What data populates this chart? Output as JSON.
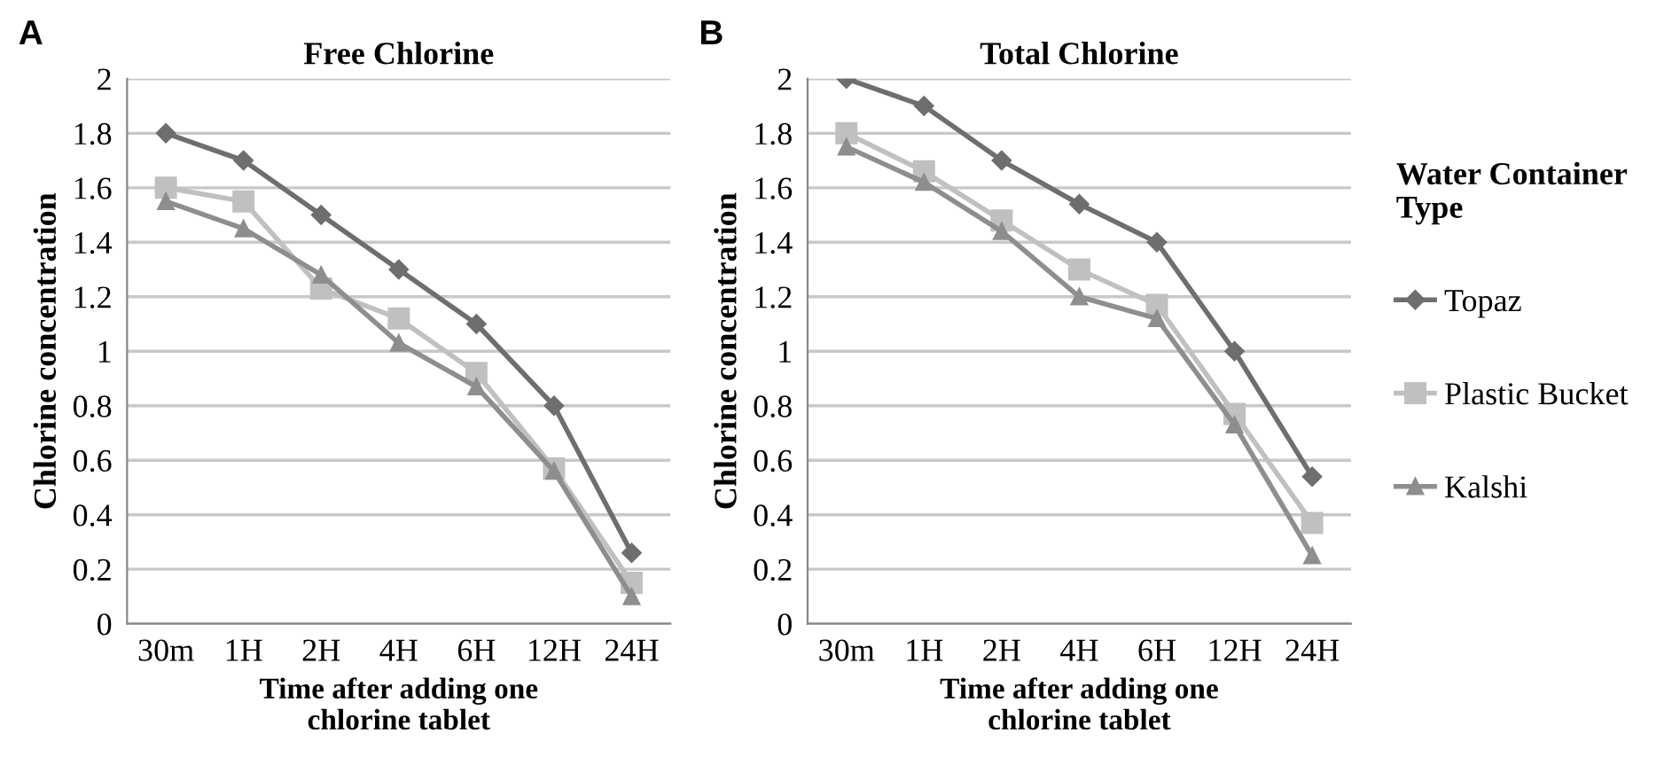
{
  "chart_data": [
    {
      "type": "line",
      "title": "Free Chlorine",
      "xlabel": "Time after adding one chlorine tablet",
      "ylabel": "Chlorine concentration",
      "annotations": [
        "A"
      ],
      "categories": [
        "30m",
        "1H",
        "2H",
        "4H",
        "6H",
        "12H",
        "24H"
      ],
      "series": [
        {
          "color": "#6e6e6e",
          "marker": "diamond",
          "values": [
            1.8,
            1.7,
            1.5,
            1.3,
            1.1,
            0.8,
            0.26
          ]
        },
        {
          "color": "#c0c0c0",
          "marker": "square",
          "values": [
            1.6,
            1.55,
            1.23,
            1.12,
            0.92,
            0.57,
            0.15
          ]
        },
        {
          "color": "#8e8e8e",
          "marker": "triangle",
          "values": [
            1.55,
            1.45,
            1.28,
            1.03,
            0.87,
            0.56,
            0.1
          ]
        }
      ],
      "ylim": [
        0,
        2
      ],
      "yticks": [
        0,
        0.2,
        0.4,
        0.6,
        0.8,
        1,
        1.2,
        1.4,
        1.6,
        1.8,
        2
      ],
      "grid": "y",
      "line_style": "solid"
    },
    {
      "type": "line",
      "title": "Total Chlorine",
      "xlabel": "Time after adding one chlorine tablet",
      "ylabel": "Chlorine concentration",
      "annotations": [
        "B"
      ],
      "categories": [
        "30m",
        "1H",
        "2H",
        "4H",
        "6H",
        "12H",
        "24H"
      ],
      "series": [
        {
          "name": "Topaz",
          "color": "#6e6e6e",
          "marker": "diamond",
          "values": [
            2.0,
            1.9,
            1.7,
            1.54,
            1.4,
            1.0,
            0.54
          ]
        },
        {
          "name": "Plastic Bucket",
          "color": "#c0c0c0",
          "marker": "square",
          "values": [
            1.8,
            1.66,
            1.48,
            1.3,
            1.17,
            0.77,
            0.37
          ]
        },
        {
          "name": "Kalshi",
          "color": "#8e8e8e",
          "marker": "triangle",
          "values": [
            1.75,
            1.62,
            1.44,
            1.2,
            1.12,
            0.73,
            0.25
          ]
        }
      ],
      "ylim": [
        0,
        2
      ],
      "yticks": [
        0,
        0.2,
        0.4,
        0.6,
        0.8,
        1,
        1.2,
        1.4,
        1.6,
        1.8,
        2
      ],
      "grid": "y",
      "line_style": "solid",
      "legend": "right",
      "legend_title": "Water Container Type"
    }
  ]
}
